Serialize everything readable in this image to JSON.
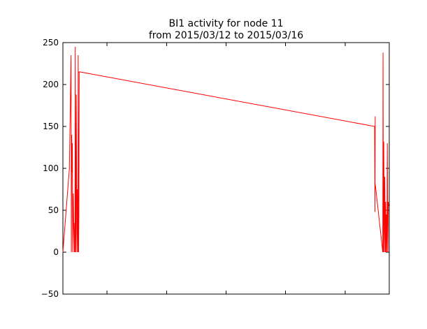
{
  "chart_data": {
    "type": "line",
    "title": "BI1 activity for node 11",
    "subtitle": "from 2015/03/12 to 2015/03/16",
    "xlabel": "",
    "ylabel": "",
    "ylim": [
      -50,
      250
    ],
    "yticks": [
      -50,
      0,
      50,
      100,
      150,
      200,
      250
    ],
    "grid": false,
    "legend": "none",
    "color": "#ff0000",
    "series": [
      {
        "x": [
          0.0,
          0.02,
          0.025,
          0.026,
          0.027,
          0.028,
          0.029,
          0.03,
          0.031,
          0.032,
          0.033,
          0.035,
          0.036,
          0.037,
          0.038,
          0.039,
          0.04,
          0.041,
          0.043,
          0.044,
          0.045,
          0.046,
          0.047,
          0.048,
          0.049,
          0.05,
          0.051,
          0.052,
          0.053,
          0.054,
          0.055,
          0.048,
          0.05,
          0.051,
          0.052,
          0.053,
          0.955,
          0.956,
          0.957,
          0.956,
          0.957,
          0.958,
          0.98,
          0.981,
          0.982,
          0.983,
          0.984,
          0.985,
          0.986,
          0.987,
          0.988,
          0.989,
          0.99,
          0.991,
          0.993,
          0.994,
          0.995,
          0.996,
          0.997,
          0.998
        ],
        "y": [
          0,
          100,
          235,
          0,
          140,
          95,
          130,
          0,
          40,
          70,
          35,
          0,
          35,
          0,
          245,
          0,
          30,
          188,
          0,
          75,
          35,
          0,
          235,
          0,
          48,
          215,
          215,
          215,
          215,
          215,
          215,
          215,
          215,
          215,
          215,
          215,
          150,
          48,
          162,
          85,
          80,
          78,
          0,
          238,
          0,
          132,
          70,
          0,
          90,
          50,
          0,
          60,
          0,
          45,
          0,
          130,
          50,
          0,
          60,
          55
        ]
      }
    ]
  }
}
